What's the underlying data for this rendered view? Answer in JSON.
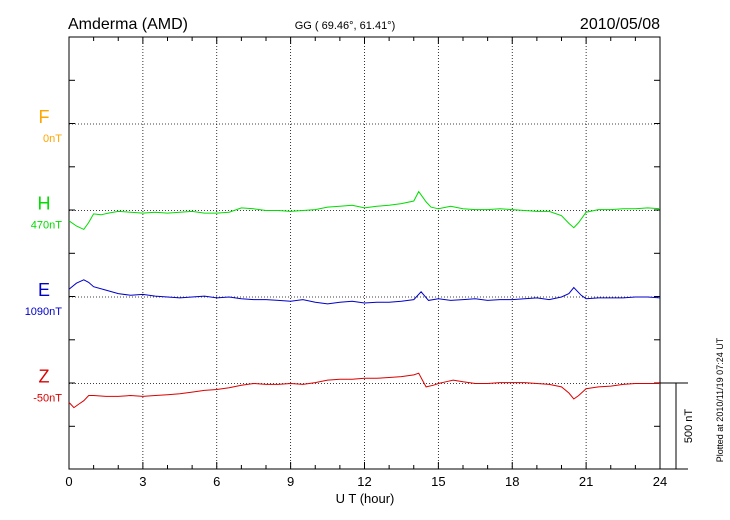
{
  "header": {
    "station": "Amderma (AMD)",
    "coords": "GG ( 69.46°,  61.41°)",
    "date": "2010/05/08"
  },
  "footer": {
    "plotted": "Plotted at 2010/11/19 07:24 UT"
  },
  "scale_bar": {
    "label": "500 nT",
    "value_nT": 500
  },
  "chart_data": {
    "type": "line",
    "title": "Amderma (AMD)",
    "xlabel": "U T (hour)",
    "ylabel": "",
    "xlim": [
      0,
      24
    ],
    "xticks": [
      0,
      3,
      6,
      9,
      12,
      15,
      18,
      21,
      24
    ],
    "x_tick_labels": [
      "0",
      "3",
      "6",
      "9",
      "12",
      "15",
      "18",
      "21",
      "24"
    ],
    "grid": true,
    "units": "nT",
    "channels": [
      {
        "name": "F",
        "baseline_label": "0nT",
        "baseline": 0,
        "color": "#ffa500",
        "x": [],
        "offset_nT": []
      },
      {
        "name": "H",
        "baseline_label": "470nT",
        "baseline": 470,
        "color": "#00dd00",
        "x": [
          0,
          0.3,
          0.6,
          0.8,
          1.0,
          1.3,
          1.6,
          2.0,
          2.5,
          3.0,
          3.5,
          4.0,
          4.5,
          5.0,
          5.5,
          6.0,
          6.5,
          7.0,
          7.5,
          8.0,
          8.5,
          9.0,
          9.5,
          10.0,
          10.5,
          11.0,
          11.5,
          12.0,
          12.5,
          13.0,
          13.5,
          14.0,
          14.2,
          14.35,
          14.5,
          14.7,
          15.0,
          15.5,
          16.0,
          16.5,
          17.0,
          17.5,
          18.0,
          18.5,
          19.0,
          19.5,
          20.0,
          20.3,
          20.5,
          20.7,
          21.0,
          21.5,
          22.0,
          22.5,
          23.0,
          23.5,
          24.0
        ],
        "offset_nT": [
          -60,
          -90,
          -110,
          -70,
          -20,
          -25,
          -15,
          -5,
          -10,
          -15,
          -10,
          -15,
          -10,
          -5,
          -15,
          -15,
          -10,
          15,
          10,
          0,
          0,
          -5,
          0,
          5,
          20,
          25,
          30,
          15,
          25,
          30,
          40,
          55,
          110,
          80,
          50,
          20,
          10,
          25,
          10,
          5,
          5,
          10,
          5,
          0,
          -5,
          -5,
          -30,
          -75,
          -100,
          -70,
          -10,
          5,
          5,
          10,
          10,
          15,
          10
        ]
      },
      {
        "name": "E",
        "baseline_label": "1090nT",
        "baseline": 1090,
        "color": "#0000cc",
        "x": [
          0,
          0.3,
          0.6,
          0.8,
          1.0,
          1.5,
          2.0,
          2.5,
          3.0,
          3.5,
          4.0,
          4.5,
          5.0,
          5.5,
          6.0,
          6.5,
          7.0,
          7.5,
          8.0,
          8.5,
          9.0,
          9.5,
          10.0,
          10.5,
          11.0,
          11.5,
          12.0,
          12.5,
          13.0,
          13.5,
          14.0,
          14.3,
          14.6,
          15.0,
          15.5,
          16.0,
          16.5,
          17.0,
          17.5,
          18.0,
          18.5,
          19.0,
          19.5,
          20.0,
          20.3,
          20.5,
          20.8,
          21.0,
          21.5,
          22.0,
          22.5,
          23.0,
          23.5,
          24.0
        ],
        "offset_nT": [
          45,
          80,
          100,
          85,
          60,
          40,
          20,
          10,
          15,
          5,
          0,
          -5,
          0,
          5,
          -5,
          0,
          -10,
          -15,
          -15,
          -20,
          -25,
          -15,
          -30,
          -40,
          -30,
          -25,
          -35,
          -30,
          -30,
          -25,
          -15,
          30,
          -20,
          -10,
          -20,
          -15,
          -10,
          -20,
          -15,
          -15,
          -10,
          -5,
          -15,
          0,
          20,
          55,
          10,
          -10,
          -5,
          -5,
          -5,
          0,
          0,
          -5
        ]
      },
      {
        "name": "Z",
        "baseline_label": "-50nT",
        "baseline": -50,
        "color": "#dd0000",
        "x": [
          0,
          0.2,
          0.4,
          0.6,
          0.8,
          1.0,
          1.5,
          2.0,
          2.5,
          3.0,
          3.5,
          4.0,
          4.5,
          5.0,
          5.5,
          6.0,
          6.5,
          7.0,
          7.5,
          8.0,
          8.5,
          9.0,
          9.5,
          10.0,
          10.5,
          11.0,
          11.5,
          12.0,
          12.5,
          13.0,
          13.5,
          14.0,
          14.2,
          14.35,
          14.5,
          14.8,
          15.0,
          15.3,
          15.6,
          16.0,
          16.5,
          17.0,
          17.5,
          18.0,
          18.5,
          19.0,
          19.5,
          20.0,
          20.3,
          20.5,
          20.7,
          21.0,
          21.5,
          22.0,
          22.5,
          23.0,
          23.5,
          24.0
        ],
        "offset_nT": [
          -110,
          -140,
          -120,
          -100,
          -70,
          -70,
          -75,
          -75,
          -70,
          -75,
          -70,
          -65,
          -60,
          -50,
          -40,
          -35,
          -25,
          -10,
          0,
          -5,
          -5,
          0,
          -5,
          5,
          20,
          25,
          25,
          30,
          30,
          35,
          40,
          50,
          60,
          20,
          -20,
          -10,
          0,
          10,
          20,
          10,
          0,
          0,
          5,
          5,
          5,
          0,
          -5,
          -20,
          -55,
          -90,
          -70,
          -30,
          -20,
          -15,
          -5,
          0,
          0,
          0
        ]
      }
    ]
  }
}
